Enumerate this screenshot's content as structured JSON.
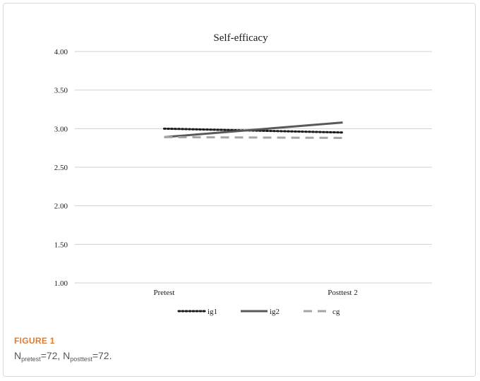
{
  "chart_data": {
    "type": "line",
    "title": "Self-efficacy",
    "categories": [
      "Pretest",
      "Posttest 2"
    ],
    "ylim": [
      1.0,
      4.0
    ],
    "yticks": [
      "1.00",
      "1.50",
      "2.00",
      "2.50",
      "3.00",
      "3.50",
      "4.00"
    ],
    "ytick_values": [
      1.0,
      1.5,
      2.0,
      2.5,
      3.0,
      3.5,
      4.0
    ],
    "grid": true,
    "legend_position": "bottom",
    "series": [
      {
        "name": "ig1",
        "values": [
          3.0,
          2.95
        ],
        "style": "dotted",
        "color": "#1a1a1a"
      },
      {
        "name": "ig2",
        "values": [
          2.89,
          3.08
        ],
        "style": "solid",
        "color": "#595959"
      },
      {
        "name": "cg",
        "values": [
          2.89,
          2.88
        ],
        "style": "dashed",
        "color": "#a6a6a6"
      }
    ]
  },
  "caption": {
    "figure_label": "FIGURE 1",
    "n_letter": "N",
    "pretest_sub": "pretest",
    "pretest_value": "=72, ",
    "posttest_sub": "posttest",
    "posttest_value": "=72."
  }
}
